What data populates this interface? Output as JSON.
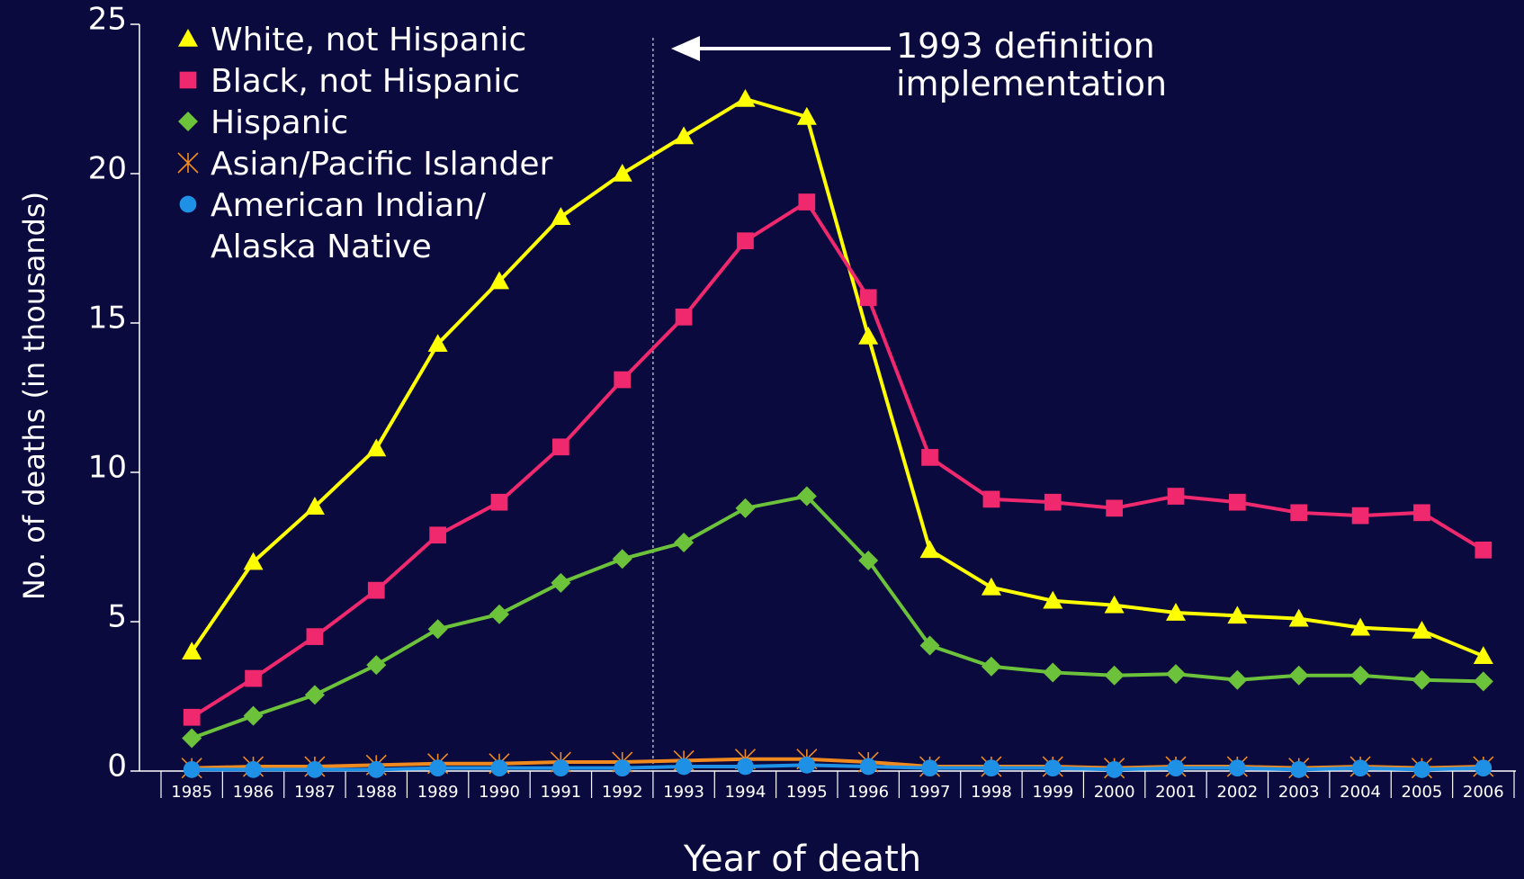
{
  "chart_data": {
    "type": "line",
    "y_label": "No. of deaths (in thousands)",
    "x_label": "Year of death",
    "annotation": "1993 definition\nimplementation",
    "categories": [
      "1985",
      "1986",
      "1987",
      "1988",
      "1989",
      "1990",
      "1991",
      "1992",
      "1993",
      "1994",
      "1995",
      "1996",
      "1997",
      "1998",
      "1999",
      "2000",
      "2001",
      "2002",
      "2003",
      "2004",
      "2005",
      "2006"
    ],
    "ylim": [
      0,
      25
    ],
    "yticks": [
      0,
      5,
      10,
      15,
      20,
      25
    ],
    "series": [
      {
        "name": "White, not Hispanic",
        "color": "#ffff00",
        "marker": "triangle",
        "values": [
          4.0,
          7.0,
          8.85,
          10.8,
          14.3,
          16.4,
          18.55,
          20.0,
          21.25,
          22.5,
          21.9,
          14.55,
          7.4,
          6.15,
          5.7,
          5.55,
          5.3,
          5.2,
          5.1,
          4.8,
          4.7,
          3.85
        ]
      },
      {
        "name": "Black, not Hispanic",
        "color": "#f0286e",
        "marker": "square",
        "values": [
          1.8,
          3.1,
          4.5,
          6.05,
          7.9,
          9.0,
          10.85,
          13.1,
          15.2,
          17.75,
          19.05,
          15.85,
          10.5,
          9.1,
          9.0,
          8.8,
          9.2,
          9.0,
          8.65,
          8.55,
          8.65,
          7.4
        ]
      },
      {
        "name": "Hispanic",
        "color": "#6cc23a",
        "marker": "diamond",
        "values": [
          1.1,
          1.85,
          2.55,
          3.55,
          4.75,
          5.25,
          6.3,
          7.1,
          7.65,
          8.8,
          9.2,
          7.05,
          4.2,
          3.5,
          3.3,
          3.2,
          3.25,
          3.05,
          3.2,
          3.2,
          3.05,
          3.0
        ]
      },
      {
        "name": "Asian/Pacific Islander",
        "color": "#f08a1e",
        "marker": "asterisk",
        "values": [
          0.1,
          0.15,
          0.15,
          0.2,
          0.25,
          0.25,
          0.3,
          0.3,
          0.35,
          0.4,
          0.4,
          0.3,
          0.15,
          0.15,
          0.15,
          0.1,
          0.15,
          0.15,
          0.1,
          0.15,
          0.1,
          0.15
        ]
      },
      {
        "name": "American Indian/\nAlaska Native",
        "color": "#1e90e6",
        "marker": "circle",
        "values": [
          0.05,
          0.05,
          0.05,
          0.05,
          0.1,
          0.1,
          0.1,
          0.1,
          0.15,
          0.15,
          0.2,
          0.15,
          0.1,
          0.1,
          0.1,
          0.05,
          0.1,
          0.1,
          0.05,
          0.1,
          0.05,
          0.1
        ]
      }
    ]
  }
}
